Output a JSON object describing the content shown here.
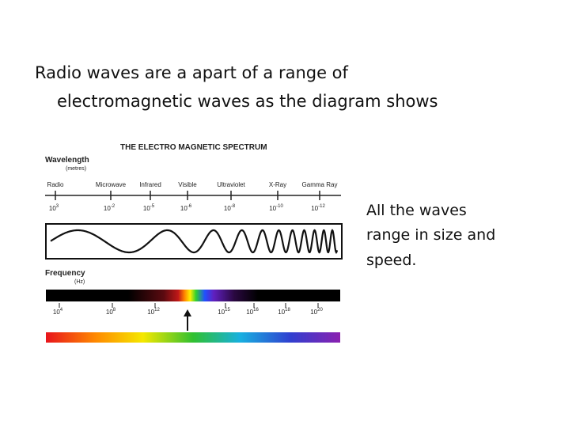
{
  "bullet": {
    "lines": [
      "Radio waves are a apart of a range of",
      "electromagnetic waves as the diagram shows"
    ]
  },
  "diagram": {
    "title": "THE ELECTRO MAGNETIC SPECTRUM",
    "wavelength_label": "Wavelength",
    "wavelength_unit": "(metres)",
    "bands": [
      "Radio",
      "Microwave",
      "Infrared",
      "Visible",
      "Ultraviolet",
      "X-Ray",
      "Gamma Ray"
    ],
    "wavelength_ticks": [
      {
        "base": "10",
        "exp": "3"
      },
      {
        "base": "10",
        "exp": "-2"
      },
      {
        "base": "10",
        "exp": "-5"
      },
      {
        "base": "10",
        "exp": "-6"
      },
      {
        "base": "10",
        "exp": "-8"
      },
      {
        "base": "10",
        "exp": "-10"
      },
      {
        "base": "10",
        "exp": "-12"
      }
    ],
    "frequency_label": "Frequency",
    "frequency_unit": "(Hz)",
    "frequency_ticks": [
      {
        "base": "10",
        "exp": "4"
      },
      {
        "base": "10",
        "exp": "8"
      },
      {
        "base": "10",
        "exp": "12"
      },
      {
        "base": "10",
        "exp": "15"
      },
      {
        "base": "10",
        "exp": "16"
      },
      {
        "base": "10",
        "exp": "18"
      },
      {
        "base": "10",
        "exp": "20"
      }
    ]
  },
  "side_text": {
    "lines": [
      "All the waves",
      "range in size and",
      "speed."
    ]
  }
}
